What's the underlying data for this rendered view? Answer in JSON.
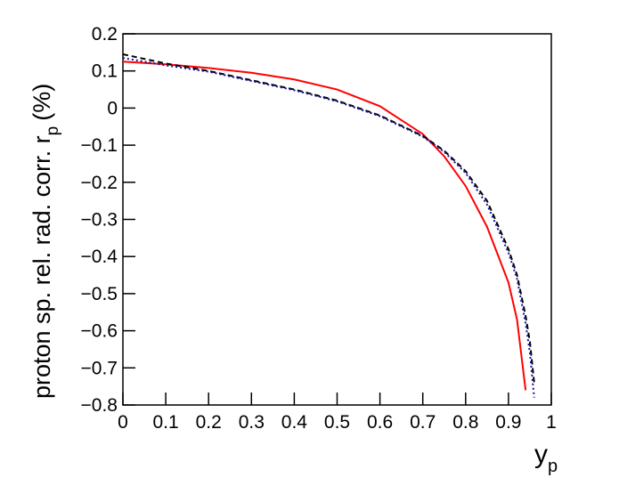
{
  "chart_data": {
    "type": "line",
    "xlabel": "y",
    "xlabel_sub": "p",
    "ylabel": "proton sp. rel. rad. corr. r",
    "ylabel_sub": "p",
    "ylabel_end": "(%)",
    "x": [
      0,
      0.1,
      0.2,
      0.3,
      0.4,
      0.5,
      0.6,
      0.7,
      0.75,
      0.8,
      0.85,
      0.9,
      0.92,
      0.94,
      0.95,
      0.96
    ],
    "series": [
      {
        "color": "#ff0000",
        "dash": "solid",
        "values": [
          0.125,
          0.118,
          0.108,
          0.095,
          0.077,
          0.05,
          0.005,
          -0.07,
          -0.13,
          -0.21,
          -0.32,
          -0.47,
          -0.57,
          -0.76,
          null,
          null
        ]
      },
      {
        "color": "#000000",
        "dash": "dashed",
        "values": [
          0.145,
          0.12,
          0.1,
          0.075,
          0.05,
          0.02,
          -0.02,
          -0.075,
          -0.115,
          -0.17,
          -0.25,
          -0.38,
          -0.45,
          -0.56,
          -0.63,
          -0.74
        ]
      },
      {
        "color": "#1010a0",
        "dash": "dotted",
        "values": [
          0.135,
          0.115,
          0.098,
          0.073,
          0.048,
          0.018,
          -0.022,
          -0.077,
          -0.118,
          -0.175,
          -0.26,
          -0.39,
          -0.46,
          -0.58,
          -0.66,
          -0.78
        ]
      }
    ],
    "xlim": [
      0,
      1
    ],
    "xticks": [
      0,
      0.1,
      0.2,
      0.3,
      0.4,
      0.5,
      0.6,
      0.7,
      0.8,
      0.9,
      1
    ],
    "ylim": [
      -0.8,
      0.2
    ],
    "yticks": [
      {
        "value": -0.8,
        "label": "−0.8"
      },
      {
        "value": -0.7,
        "label": "−0.7"
      },
      {
        "value": -0.6,
        "label": "−0.6"
      },
      {
        "value": -0.5,
        "label": "−0.5"
      },
      {
        "value": -0.4,
        "label": "−0.4"
      },
      {
        "value": -0.3,
        "label": "−0.3"
      },
      {
        "value": -0.2,
        "label": "−0.2"
      },
      {
        "value": -0.1,
        "label": "−0.1"
      },
      0,
      0.1,
      0.2
    ],
    "grid": false
  }
}
